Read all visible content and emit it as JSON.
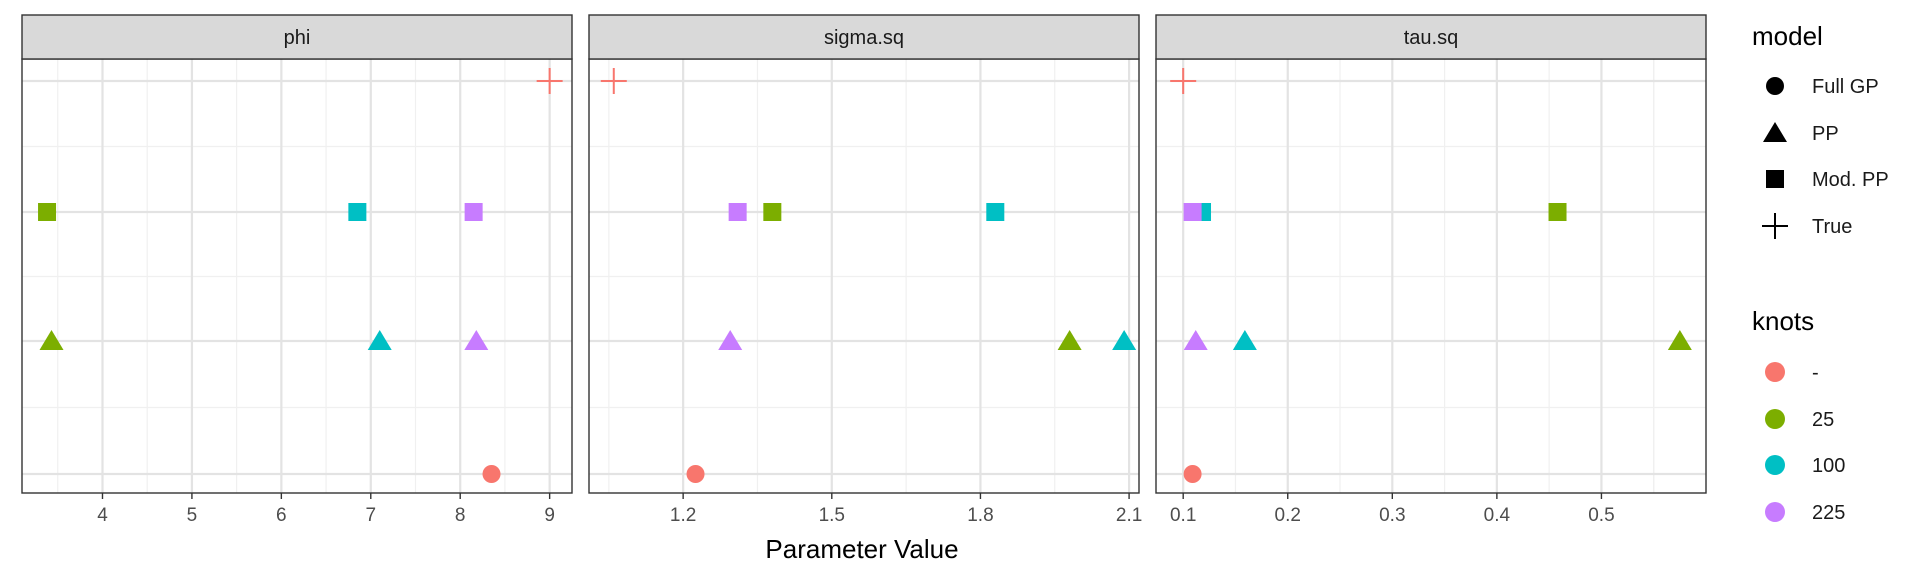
{
  "chart_data": {
    "type": "scatter",
    "facets": [
      {
        "name": "phi",
        "xlim": [
          3.1,
          9.25
        ],
        "ticks": [
          4,
          5,
          6,
          7,
          8,
          9
        ],
        "tick_labels": [
          "4",
          "5",
          "6",
          "7",
          "8",
          "9"
        ],
        "points": [
          {
            "model": "True",
            "knots": "-",
            "x": 9.0
          },
          {
            "model": "Mod. PP",
            "knots": "25",
            "x": 3.38
          },
          {
            "model": "Mod. PP",
            "knots": "100",
            "x": 6.85
          },
          {
            "model": "Mod. PP",
            "knots": "225",
            "x": 8.15
          },
          {
            "model": "PP",
            "knots": "25",
            "x": 3.43
          },
          {
            "model": "PP",
            "knots": "100",
            "x": 7.1
          },
          {
            "model": "PP",
            "knots": "225",
            "x": 8.18
          },
          {
            "model": "Full GP",
            "knots": "-",
            "x": 8.35
          }
        ]
      },
      {
        "name": "sigma.sq",
        "xlim": [
          1.01,
          2.12
        ],
        "ticks": [
          1.2,
          1.5,
          1.8,
          2.1
        ],
        "tick_labels": [
          "1.2",
          "1.5",
          "1.8",
          "2.1"
        ],
        "points": [
          {
            "model": "True",
            "knots": "-",
            "x": 1.06
          },
          {
            "model": "Mod. PP",
            "knots": "225",
            "x": 1.31
          },
          {
            "model": "Mod. PP",
            "knots": "25",
            "x": 1.38
          },
          {
            "model": "Mod. PP",
            "knots": "100",
            "x": 1.83
          },
          {
            "model": "PP",
            "knots": "225",
            "x": 1.295
          },
          {
            "model": "PP",
            "knots": "25",
            "x": 1.98
          },
          {
            "model": "PP",
            "knots": "100",
            "x": 2.09
          },
          {
            "model": "Full GP",
            "knots": "-",
            "x": 1.225
          }
        ]
      },
      {
        "name": "tau.sq",
        "xlim": [
          0.074,
          0.6
        ],
        "ticks": [
          0.1,
          0.2,
          0.3,
          0.4,
          0.5
        ],
        "tick_labels": [
          "0.1",
          "0.2",
          "0.3",
          "0.4",
          "0.5"
        ],
        "points": [
          {
            "model": "True",
            "knots": "-",
            "x": 0.1
          },
          {
            "model": "Mod. PP",
            "knots": "100",
            "x": 0.118
          },
          {
            "model": "Mod. PP",
            "knots": "225",
            "x": 0.109
          },
          {
            "model": "Mod. PP",
            "knots": "25",
            "x": 0.458
          },
          {
            "model": "PP",
            "knots": "225",
            "x": 0.112
          },
          {
            "model": "PP",
            "knots": "100",
            "x": 0.159
          },
          {
            "model": "PP",
            "knots": "25",
            "x": 0.575
          },
          {
            "model": "Full GP",
            "knots": "-",
            "x": 0.109
          }
        ]
      }
    ],
    "rows": [
      "Full GP",
      "PP",
      "Mod. PP",
      "True"
    ],
    "xlabel": "Parameter Value",
    "ylabel": "",
    "grid": true,
    "legend_position": "right",
    "legends": {
      "model": {
        "title": "model",
        "entries": [
          {
            "label": "Full GP",
            "shape": "circle"
          },
          {
            "label": "PP",
            "shape": "triangle"
          },
          {
            "label": "Mod. PP",
            "shape": "square"
          },
          {
            "label": "True",
            "shape": "plus"
          }
        ]
      },
      "knots": {
        "title": "knots",
        "entries": [
          {
            "label": "-",
            "color": "#F8766D"
          },
          {
            "label": "25",
            "color": "#7CAE00"
          },
          {
            "label": "100",
            "color": "#00BFC4"
          },
          {
            "label": "225",
            "color": "#C77CFF"
          }
        ]
      }
    },
    "colors": {
      "-": "#F8766D",
      "25": "#7CAE00",
      "100": "#00BFC4",
      "225": "#C77CFF"
    }
  }
}
